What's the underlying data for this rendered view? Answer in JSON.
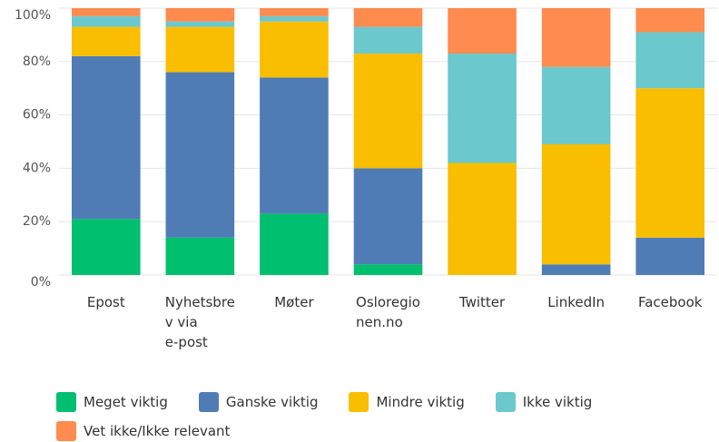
{
  "chart_data": {
    "type": "stacked_bar",
    "categories": [
      "Epost",
      "Nyhetsbre\nv via\ne-post",
      "Møter",
      "Osloregio\nnen.no",
      "Twitter",
      "LinkedIn",
      "Facebook"
    ],
    "series": [
      {
        "name": "Meget viktig",
        "color": "#00bf6f",
        "values": [
          21,
          14,
          23,
          4,
          0,
          0,
          0
        ]
      },
      {
        "name": "Ganske viktig",
        "color": "#507cb6",
        "values": [
          61,
          62,
          51,
          36,
          0,
          4,
          14
        ]
      },
      {
        "name": "Mindre viktig",
        "color": "#f9be00",
        "values": [
          11,
          17,
          21,
          43,
          42,
          45,
          56
        ]
      },
      {
        "name": "Ikke viktig",
        "color": "#6bc8cd",
        "values": [
          4,
          2,
          2,
          10,
          41,
          29,
          21
        ]
      },
      {
        "name": "Vet ikke/Ikke relevant",
        "color": "#ff8b4f",
        "values": [
          3,
          5,
          3,
          7,
          17,
          22,
          9
        ]
      }
    ],
    "ylim": [
      0,
      100
    ],
    "yticks": [
      {
        "value": 0,
        "label": "0%"
      },
      {
        "value": 20,
        "label": "20%"
      },
      {
        "value": 40,
        "label": "40%"
      },
      {
        "value": 60,
        "label": "60%"
      },
      {
        "value": 80,
        "label": "80%"
      },
      {
        "value": 100,
        "label": "100%"
      }
    ],
    "grid": true
  }
}
